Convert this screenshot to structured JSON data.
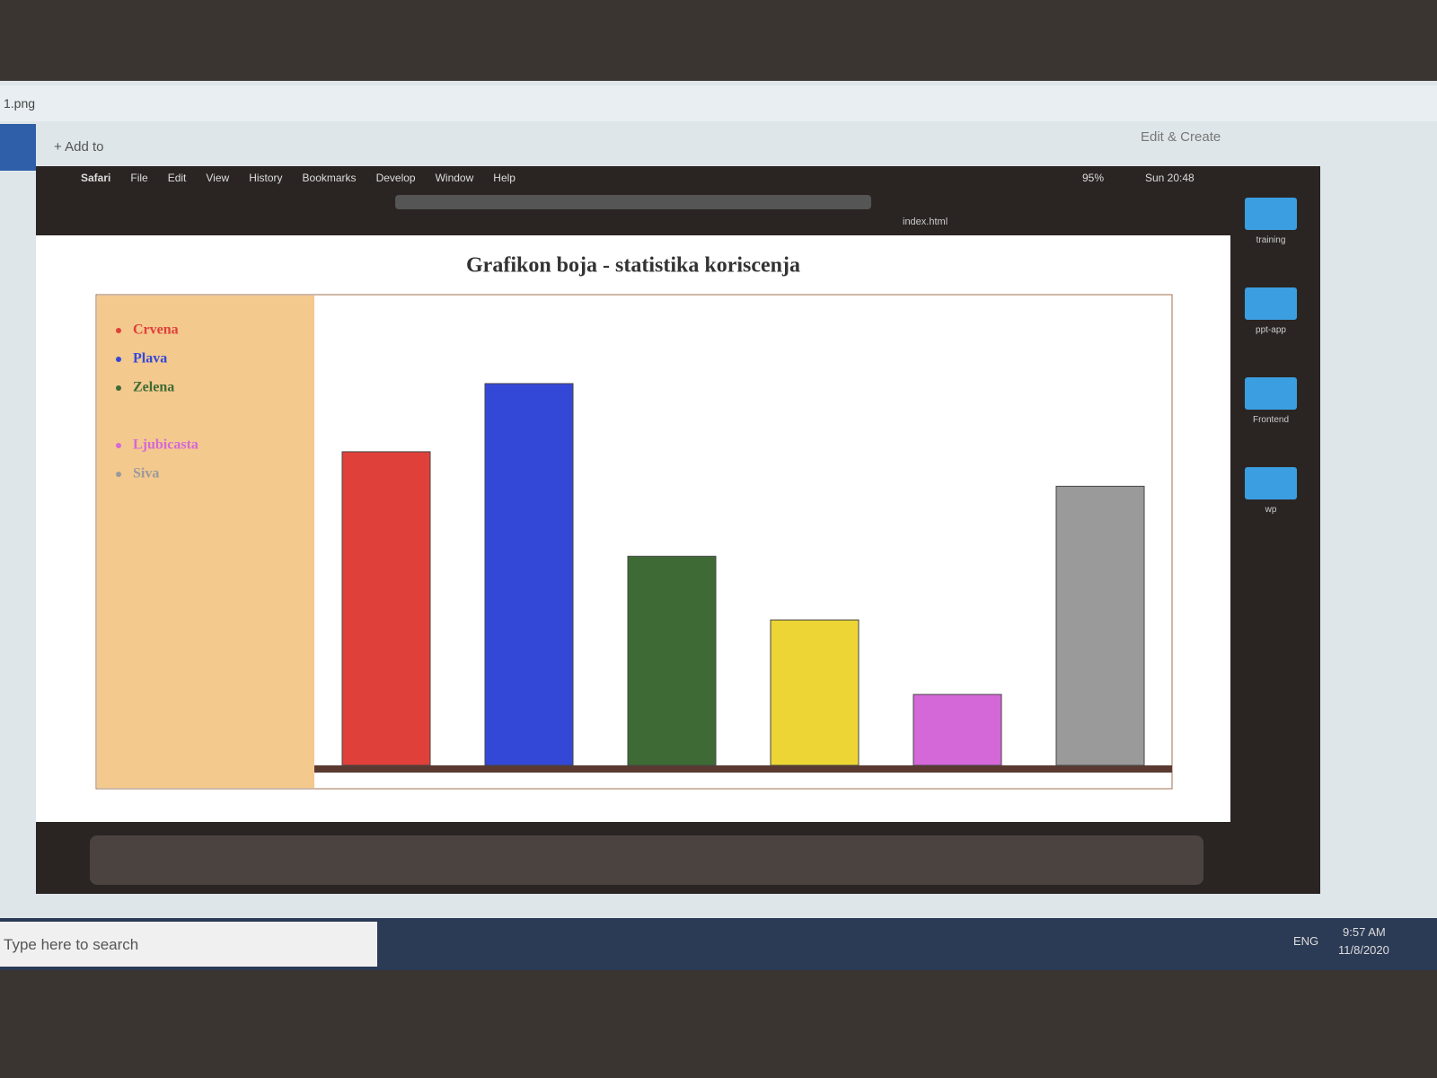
{
  "window": {
    "title": "1.png",
    "add_to": "Add to",
    "edit_create": "Edit & Create"
  },
  "mac": {
    "menu": [
      "Safari",
      "File",
      "Edit",
      "View",
      "History",
      "Bookmarks",
      "Develop",
      "Window",
      "Help"
    ],
    "battery": "95%",
    "clock": "Sun 20:48",
    "tab": "index.html"
  },
  "desktop_folders": [
    "training",
    "ppt-app",
    "Frontend",
    "wp"
  ],
  "taskbar": {
    "search": "Type here to search",
    "lang": "ENG",
    "time": "9:57 AM",
    "date": "11/8/2020"
  },
  "chart_data": {
    "type": "bar",
    "title": "Grafikon boja - statistika koriscenja",
    "categories": [
      "Crvena",
      "Plava",
      "Zelena",
      null,
      "Ljubicasta",
      "Siva"
    ],
    "values": [
      345,
      420,
      230,
      160,
      78,
      307
    ],
    "colors": [
      "#e0403a",
      "#3448d8",
      "#3e6b35",
      "#ecd535",
      "#d468d8",
      "#9a9a9a"
    ],
    "legend_background": "#f3c98e"
  }
}
